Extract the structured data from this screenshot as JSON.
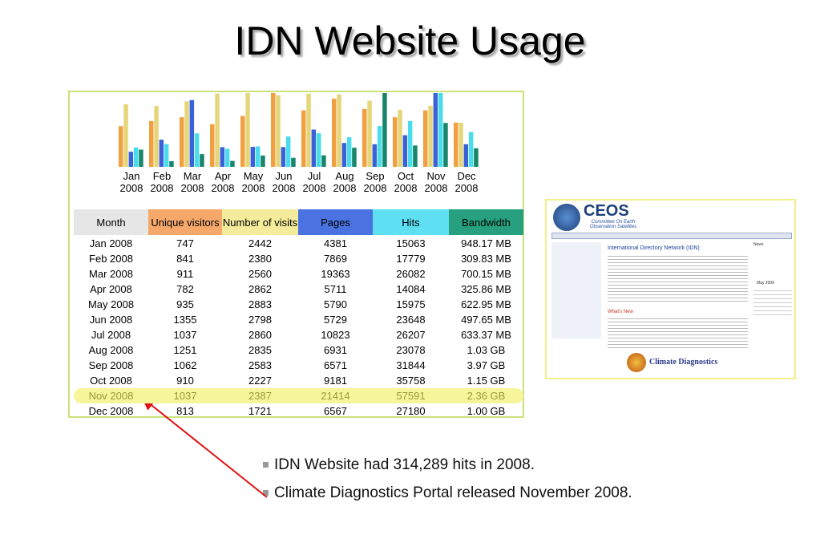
{
  "title": "IDN Website Usage",
  "chart_data": {
    "type": "bar",
    "categories": [
      "Jan 2008",
      "Feb 2008",
      "Mar 2008",
      "Apr 2008",
      "May 2008",
      "Jun 2008",
      "Jul 2008",
      "Aug 2008",
      "Sep 2008",
      "Oct 2008",
      "Nov 2008",
      "Dec 2008"
    ],
    "series": [
      {
        "name": "Unique visitors",
        "color": "#f0a040",
        "values": [
          747,
          841,
          911,
          782,
          935,
          1355,
          1037,
          1251,
          1062,
          910,
          1037,
          813
        ]
      },
      {
        "name": "Number of visits",
        "color": "#e6d67a",
        "values": [
          2442,
          2380,
          2560,
          2862,
          2883,
          2798,
          2860,
          2835,
          2583,
          2227,
          2387,
          1721
        ]
      },
      {
        "name": "Pages",
        "color": "#3a62d8",
        "values": [
          4381,
          7869,
          19363,
          5711,
          5790,
          5729,
          10823,
          6931,
          6571,
          9181,
          21414,
          6567
        ]
      },
      {
        "name": "Hits",
        "color": "#48dcec",
        "values": [
          15063,
          17779,
          26082,
          14084,
          15975,
          23648,
          26207,
          23078,
          31844,
          35758,
          57591,
          27180
        ]
      },
      {
        "name": "Bandwidth",
        "color": "#17866a",
        "values": [
          948.17,
          309.83,
          700.15,
          325.86,
          622.95,
          497.65,
          633.37,
          1054.72,
          4065.28,
          1177.6,
          2416.64,
          1024
        ],
        "value_labels": [
          "948.17 MB",
          "309.83 MB",
          "700.15 MB",
          "325.86 MB",
          "622.95 MB",
          "497.65 MB",
          "633.37 MB",
          "1.03 GB",
          "3.97 GB",
          "1.15 GB",
          "2.36 GB",
          "1.00 GB"
        ]
      }
    ]
  },
  "table": {
    "month_header": "Month"
  },
  "screenshot": {
    "logo": "CEOS",
    "tagline": "Committee On Earth Observation Satellites",
    "heading": "International Directory Network (IDN)",
    "whats_new": "What's New",
    "portal": "Climate Diagnostics",
    "news": "News",
    "calendar": "May 2009"
  },
  "bullets": [
    "IDN Website had 314,289 hits in 2008.",
    "Climate Diagnostics Portal released November 2008."
  ]
}
